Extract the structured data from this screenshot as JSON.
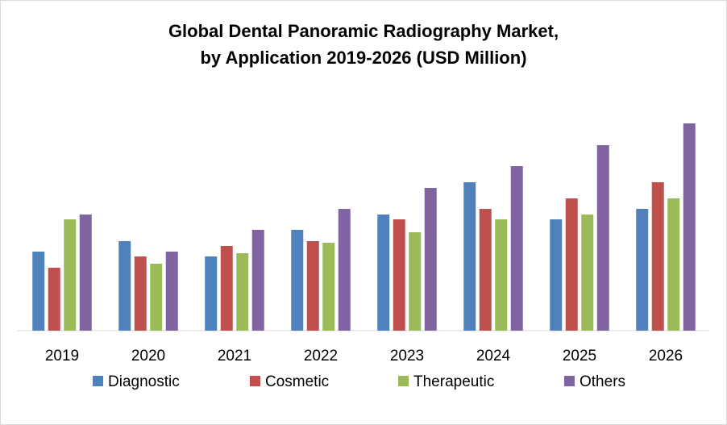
{
  "chart_data": {
    "type": "bar",
    "title": [
      "Global Dental Panoramic Radiography Market,",
      "by Application 2019-2026 (USD Million)"
    ],
    "categories": [
      "2019",
      "2020",
      "2021",
      "2022",
      "2023",
      "2024",
      "2025",
      "2026"
    ],
    "series": [
      {
        "name": "Diagnostic",
        "color": "#4f81bd",
        "values": [
          98,
          111,
          92,
          125,
          144,
          184,
          138,
          151
        ]
      },
      {
        "name": "Cosmetic",
        "color": "#c0504d",
        "values": [
          78,
          92,
          105,
          111,
          138,
          151,
          164,
          184
        ]
      },
      {
        "name": "Therapeutic",
        "color": "#9bbb59",
        "values": [
          138,
          83,
          96,
          109,
          122,
          138,
          144,
          164
        ]
      },
      {
        "name": "Others",
        "color": "#8064a2",
        "values": [
          144,
          98,
          125,
          151,
          177,
          204,
          230,
          257
        ]
      }
    ],
    "ylim": [
      0,
      260
    ],
    "legend": "bottom",
    "grid": false
  }
}
